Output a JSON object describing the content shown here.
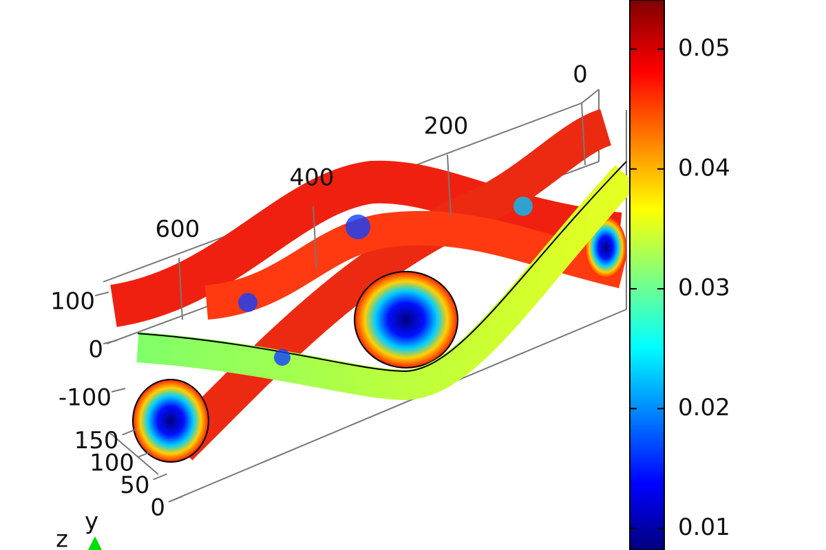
{
  "chart_data": {
    "type": "surface3d",
    "axes": {
      "x": {
        "ticks": [
          0,
          200,
          400,
          600
        ]
      },
      "y": {
        "label": "y",
        "ticks": [
          150,
          100,
          50,
          0
        ]
      },
      "z": {
        "label": "z",
        "ticks": [
          100,
          0,
          -100
        ]
      }
    },
    "colorbar": {
      "colormap": "jet",
      "clim": [
        0.0082,
        0.0541
      ],
      "ticks": [
        0.05,
        0.04,
        0.03,
        0.02,
        0.01
      ]
    }
  }
}
